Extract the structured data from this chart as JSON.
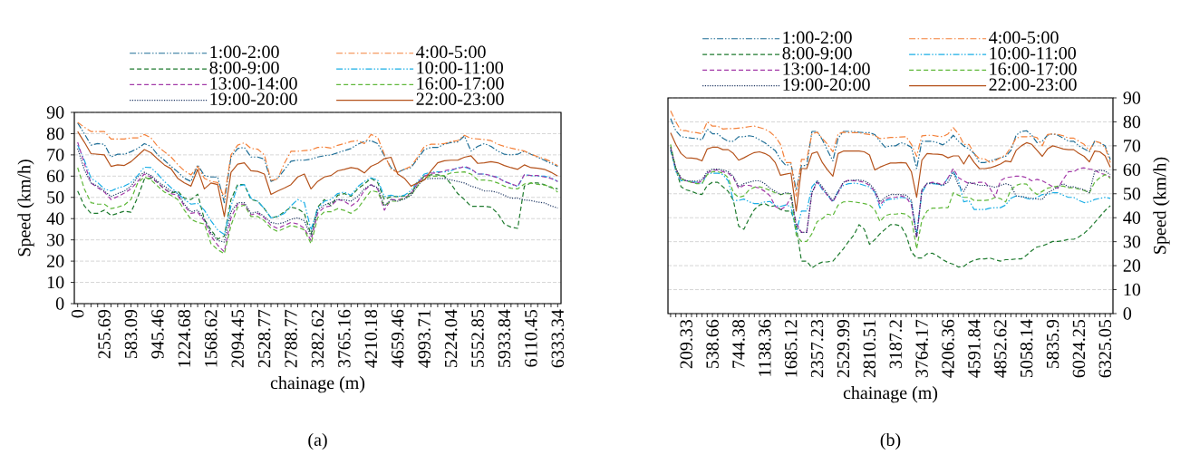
{
  "chart_data": [
    {
      "type": "line",
      "xlabel": "chainage (m)",
      "ylabel": "Speed (km/h)",
      "ylim": [
        0,
        90
      ],
      "yticks": [
        0,
        10,
        20,
        30,
        40,
        50,
        60,
        70,
        80,
        90
      ],
      "grid": "y",
      "legend": "top",
      "annotations": [
        "(a)"
      ],
      "categories": [
        "0",
        null,
        null,
        null,
        "255.69",
        null,
        null,
        null,
        "583.09",
        null,
        null,
        null,
        "945.46",
        null,
        null,
        null,
        "1224.68",
        null,
        null,
        null,
        "1568.62",
        null,
        null,
        null,
        "2094.45",
        null,
        null,
        null,
        "2528.77",
        null,
        null,
        null,
        "2788.77",
        null,
        null,
        null,
        "3282.62",
        null,
        null,
        null,
        "3765.16",
        null,
        null,
        null,
        "4210.18",
        null,
        null,
        null,
        "4659.46",
        null,
        null,
        null,
        "4993.71",
        null,
        null,
        null,
        "5224.04",
        null,
        null,
        null,
        "5552.85",
        null,
        null,
        null,
        "5933.84",
        null,
        null,
        null,
        "6110.45",
        null,
        null,
        null,
        "6333.34"
      ],
      "series": [
        {
          "name": "1:00-2:00",
          "color": "#1f6e96",
          "line_style": "dashdotdot",
          "values": [
            85,
            80,
            74.6,
            75.3,
            75,
            69,
            70.3,
            70.3,
            71.5,
            73,
            75.3,
            74,
            70,
            67.5,
            64.6,
            62,
            59,
            57.5,
            65.3,
            60.3,
            59.6,
            59.6,
            47.5,
            69,
            73,
            73.5,
            69,
            69,
            68,
            57.5,
            59,
            63,
            67,
            67.5,
            67.5,
            68,
            69,
            69.6,
            70,
            71,
            72,
            73,
            75,
            76.3,
            76.7,
            75.3,
            69.6,
            64,
            61.8,
            63.2,
            64,
            68.2,
            72.5,
            73.5,
            73.5,
            75,
            75.8,
            76.1,
            78.9,
            71.8,
            74,
            75.3,
            74,
            71.8,
            70.3,
            70,
            70.3,
            71.8,
            70.3,
            68.9,
            67.5,
            66,
            64.6
          ]
        },
        {
          "name": "4:00-5:00",
          "color": "#f4813a",
          "line_style": "dashdot",
          "values": [
            85.3,
            83,
            81,
            81,
            81,
            77.5,
            77.5,
            77.5,
            78,
            78,
            79.6,
            78,
            74,
            71.5,
            69,
            65.5,
            62.5,
            60.6,
            64.6,
            59,
            57.5,
            57,
            50,
            70,
            74.6,
            75.7,
            73,
            72.7,
            70,
            58,
            58.6,
            66,
            71.7,
            71.7,
            72,
            72.3,
            73.5,
            73.7,
            73.2,
            74.5,
            75.3,
            76.3,
            76.7,
            75.3,
            79.6,
            78.2,
            70.3,
            63.2,
            61.8,
            63.2,
            64.6,
            69,
            74,
            75,
            75,
            75.3,
            76.3,
            76.7,
            79.2,
            77.8,
            77.5,
            77.2,
            76.7,
            75,
            74,
            73.2,
            72.5,
            71.8,
            70.3,
            69.2,
            68.2,
            66.8,
            64.9
          ]
        },
        {
          "name": "8:00-9:00",
          "color": "#1e7a2e",
          "line_style": "dashed",
          "values": [
            53,
            46,
            42.5,
            42.5,
            44,
            41.5,
            42.5,
            43.5,
            43,
            50,
            58.6,
            59,
            57,
            54,
            52,
            53,
            49.6,
            49,
            51.5,
            39.7,
            34.7,
            30.4,
            31.8,
            49,
            56,
            56,
            49,
            48.2,
            44.7,
            40.4,
            41,
            43.2,
            45.4,
            44.7,
            42.5,
            32.5,
            45.4,
            49,
            46,
            51,
            51.8,
            50.5,
            54,
            56.3,
            59,
            57,
            49,
            50.4,
            50.4,
            50.7,
            52,
            56.8,
            60,
            60.6,
            60.6,
            60,
            56.3,
            51.8,
            49,
            45.8,
            45.8,
            45.8,
            45.4,
            42.5,
            37.5,
            36,
            35.4,
            55.3,
            56.8,
            56.8,
            56,
            54.6,
            54
          ]
        },
        {
          "name": "10:00-11:00",
          "color": "#1aaee6",
          "line_style": "dashdotdot",
          "values": [
            74.6,
            67.5,
            59,
            57,
            54,
            53,
            54.4,
            55.3,
            57,
            60.3,
            64.2,
            64,
            61,
            57.5,
            54.6,
            52,
            49,
            46.8,
            47.2,
            44,
            39,
            34.7,
            32.5,
            46,
            55.3,
            56,
            49.6,
            48.2,
            44.7,
            40.4,
            41,
            42.5,
            46,
            49,
            47.5,
            34.7,
            44.7,
            48.2,
            49,
            51.8,
            52.5,
            51,
            55,
            57.5,
            59.2,
            58.2,
            50.4,
            51,
            50.4,
            51,
            53.2,
            57.5,
            61,
            61.8,
            62,
            62,
            62.5,
            64,
            64.3,
            63.2,
            61,
            61,
            60,
            59.6,
            57.5,
            56.3,
            55,
            60.6,
            60.3,
            60,
            60,
            59.2,
            57.5
          ]
        },
        {
          "name": "13:00-14:00",
          "color": "#a33aa8",
          "line_style": "dashed",
          "values": [
            76,
            66,
            56.8,
            54.6,
            52.5,
            49,
            50.4,
            52,
            54,
            57.5,
            61,
            59.6,
            56.8,
            54,
            51.8,
            51,
            46,
            42.5,
            43,
            39,
            31.8,
            27.5,
            24.4,
            40.4,
            46.8,
            46.8,
            41.8,
            42.5,
            40.4,
            36.8,
            35.4,
            36.8,
            38.2,
            37.5,
            35.4,
            29.7,
            42.5,
            45.4,
            46,
            49,
            48.2,
            46,
            48.2,
            53.2,
            56,
            54,
            44,
            49,
            48.8,
            49.7,
            51.8,
            56.8,
            60,
            61.4,
            61.5,
            62.5,
            63.2,
            63.5,
            64.6,
            63.5,
            61,
            61,
            60.3,
            59.2,
            57.5,
            56.4,
            55.3,
            60.6,
            60.3,
            60.3,
            59.6,
            58.9,
            57.5
          ]
        },
        {
          "name": "16:00-17:00",
          "color": "#5fb83a",
          "line_style": "dashed",
          "values": [
            64,
            54,
            47.5,
            46.8,
            46.8,
            44.7,
            45.4,
            46.4,
            49,
            56.8,
            59.6,
            58.2,
            55.3,
            52.5,
            51,
            49,
            44,
            39.7,
            38.2,
            37.5,
            28.2,
            25.4,
            23.5,
            36.8,
            45.4,
            46.4,
            41,
            41,
            39,
            35.4,
            34,
            35.4,
            36.8,
            36,
            34.7,
            28.2,
            40.4,
            43.2,
            43.2,
            44.7,
            43.9,
            42.5,
            44.7,
            49,
            53.2,
            52.5,
            46,
            48.2,
            48.2,
            49.7,
            51,
            55.3,
            59.2,
            60,
            60,
            60.3,
            61.5,
            61.8,
            62,
            61,
            58.2,
            58.2,
            57.8,
            56.8,
            55.3,
            54.3,
            54,
            56.3,
            56.8,
            56.1,
            55.8,
            55,
            52.5
          ]
        },
        {
          "name": "19:00-20:00",
          "color": "#203864",
          "line_style": "dotted",
          "values": [
            73,
            63,
            56.8,
            55.3,
            53,
            50.4,
            51.8,
            53,
            55.3,
            59.6,
            61.8,
            60.3,
            57.5,
            55.3,
            53,
            51.8,
            46.8,
            43.2,
            44,
            39.7,
            33.2,
            29.7,
            29,
            43.2,
            47.5,
            47.5,
            42.5,
            43.2,
            41,
            38.2,
            37.5,
            38.2,
            39.7,
            40.4,
            39,
            31.8,
            44,
            46.4,
            47.5,
            49,
            48.8,
            48.2,
            50.4,
            54,
            56,
            54.6,
            46,
            49,
            48.2,
            49.2,
            51,
            55.7,
            58.6,
            58.9,
            58.9,
            58.9,
            58.2,
            57.5,
            56.8,
            55.3,
            54.4,
            53,
            53,
            52.3,
            51,
            49.6,
            49.6,
            48.8,
            48.5,
            47.8,
            47.4,
            46,
            45
          ]
        },
        {
          "name": "22:00-23:00",
          "color": "#b5531c",
          "line_style": "solid",
          "values": [
            81,
            76,
            70.6,
            70.3,
            70,
            64.6,
            65.3,
            65,
            66.8,
            69.6,
            72.5,
            71,
            68,
            65.3,
            63.5,
            59,
            56.8,
            55.3,
            63.2,
            54,
            56.8,
            56,
            41,
            61.8,
            65.6,
            66.3,
            62.5,
            62.2,
            61,
            51.4,
            53,
            54.4,
            56,
            59.6,
            61,
            54,
            57.5,
            59.6,
            60.3,
            62.5,
            63.2,
            64,
            63.5,
            61.5,
            64.6,
            66,
            68.2,
            68.9,
            61,
            59,
            55.3,
            56.8,
            58.2,
            62.5,
            66.3,
            67.2,
            67.5,
            67.5,
            68.9,
            69.6,
            66,
            66.3,
            66.8,
            66.3,
            65,
            64,
            63.2,
            65.3,
            64,
            63.7,
            63.2,
            61.8,
            60
          ]
        }
      ]
    },
    {
      "type": "line",
      "xlabel": "chainage (m)",
      "ylabel": "Speed (km/h)",
      "ylim": [
        0,
        90
      ],
      "yticks": [
        0,
        10,
        20,
        30,
        40,
        50,
        60,
        70,
        80,
        90
      ],
      "grid": "y",
      "legend": "top",
      "annotations": [
        "(b)"
      ],
      "categories": [
        null,
        null,
        null,
        "209.33",
        null,
        null,
        null,
        null,
        "538.66",
        null,
        null,
        null,
        null,
        "744.38",
        null,
        null,
        null,
        null,
        "1138.36",
        null,
        null,
        null,
        null,
        "1685.12",
        null,
        null,
        null,
        null,
        "2357.23",
        null,
        null,
        null,
        null,
        "2529.99",
        null,
        null,
        null,
        null,
        "2810.51",
        null,
        null,
        null,
        null,
        "3187.2",
        null,
        null,
        null,
        null,
        "3764.17",
        null,
        null,
        null,
        null,
        "4206.36",
        null,
        null,
        null,
        null,
        "4591.84",
        null,
        null,
        null,
        null,
        "4852.62",
        null,
        null,
        null,
        null,
        "5058.14",
        null,
        null,
        null,
        null,
        "5835.9",
        null,
        null,
        null,
        null,
        "6024.25",
        null,
        null,
        null,
        null,
        "6325.05",
        null
      ],
      "series": [
        {
          "name": "1:00-2:00",
          "color": "#1f6e96",
          "line_style": "dashdotdot",
          "values": [
            81.4,
            76.3,
            73.8,
            73.5,
            73.2,
            73,
            72.5,
            77,
            75,
            75,
            73.2,
            71.9,
            71.9,
            73.8,
            73.8,
            74.2,
            73.8,
            72.5,
            71.3,
            69.6,
            68,
            64.3,
            61.8,
            62.4,
            51.6,
            61.8,
            61.8,
            76,
            76,
            72.5,
            68,
            63.7,
            73.2,
            76,
            76,
            76,
            75.7,
            75.5,
            75.5,
            74.7,
            71.9,
            69.4,
            70,
            70,
            71.3,
            70.6,
            69.4,
            60.5,
            71.9,
            71.9,
            71.9,
            71.3,
            70.4,
            71.9,
            74.4,
            71.9,
            70,
            68.7,
            66.8,
            63,
            63,
            63.7,
            64.3,
            65,
            65.6,
            68,
            74.4,
            76,
            76.3,
            74.4,
            71.3,
            71.9,
            74.4,
            75,
            74.4,
            73.2,
            71.9,
            71.9,
            70,
            68.7,
            67.5,
            71.9,
            71.3,
            70,
            64.3
          ]
        },
        {
          "name": "4:00-5:00",
          "color": "#f4813a",
          "line_style": "dashdot",
          "values": [
            84.6,
            80,
            76.3,
            76.3,
            75.7,
            75.5,
            75,
            80,
            78.2,
            78.2,
            77,
            77.2,
            77.2,
            77.4,
            77.6,
            78,
            78.2,
            77.6,
            77,
            75.7,
            73.8,
            70.6,
            63,
            63,
            49,
            64.3,
            64.3,
            75,
            75.7,
            73,
            70.6,
            67.5,
            75,
            75.7,
            75.5,
            75.5,
            75.5,
            75,
            74.7,
            74.4,
            73,
            73.2,
            73.5,
            73.5,
            73.7,
            73.8,
            70.6,
            65.6,
            74.2,
            74.4,
            74.4,
            74,
            73.8,
            75,
            77.6,
            75,
            70.6,
            70.6,
            66.8,
            64.6,
            64.6,
            63,
            63.7,
            65,
            66.2,
            69.4,
            73.2,
            73.8,
            73.8,
            74,
            73.4,
            70,
            74.7,
            75,
            74.7,
            74.2,
            73.2,
            73.2,
            71.9,
            70.6,
            68,
            72,
            71.3,
            69.4,
            63
          ]
        },
        {
          "name": "8:00-9:00",
          "color": "#1e7a2e",
          "line_style": "dashed",
          "values": [
            68.1,
            60.5,
            52.9,
            51.6,
            51,
            50.1,
            49.7,
            53.5,
            54.8,
            54.8,
            52.9,
            51,
            47.2,
            36.5,
            35.2,
            39.6,
            43.4,
            45.3,
            45.9,
            44.7,
            45,
            43.4,
            42.8,
            42.8,
            36.5,
            21.9,
            21.9,
            19,
            20.6,
            21.5,
            21.6,
            21.9,
            24.4,
            27,
            30.1,
            32.7,
            37.1,
            35.2,
            28.9,
            30.8,
            33.3,
            35.2,
            37.1,
            37.1,
            36.5,
            32.7,
            25.7,
            23.2,
            23.2,
            25,
            25.2,
            24,
            22.5,
            21.3,
            20.6,
            19.4,
            19.7,
            21.3,
            22.3,
            22.8,
            22.8,
            23.2,
            22.5,
            21.9,
            22.5,
            22.5,
            22.8,
            22.8,
            24.4,
            26.3,
            27.8,
            28.2,
            29.1,
            30.1,
            30.1,
            30.4,
            31,
            31,
            32,
            33.5,
            35.5,
            38,
            40.5,
            43,
            45
          ]
        },
        {
          "name": "10:00-11:00",
          "color": "#1aaee6",
          "line_style": "dashdotdot",
          "values": [
            68.7,
            59.2,
            55.4,
            55.4,
            55,
            54.8,
            54.2,
            58.6,
            58.6,
            58.6,
            58,
            55.4,
            47.2,
            47.2,
            47.8,
            46.6,
            45.9,
            45.9,
            46.6,
            46.8,
            45,
            44.7,
            45.3,
            44.7,
            33.9,
            42.8,
            42.8,
            52.9,
            55.4,
            51.6,
            49.4,
            46.6,
            51,
            53.5,
            54.2,
            54.4,
            54.2,
            53.5,
            52.9,
            50.6,
            44,
            47.2,
            47.8,
            47.8,
            48.5,
            48.2,
            46.6,
            33.3,
            50.4,
            54.2,
            54.2,
            54,
            53.2,
            56.7,
            59.2,
            55.4,
            46.6,
            47.2,
            43.4,
            43.4,
            43.4,
            44,
            44.2,
            44.2,
            45.3,
            48.1,
            49.1,
            48.8,
            48.1,
            47.6,
            48.5,
            49.7,
            49.7,
            50.4,
            50.4,
            49.4,
            48.5,
            48.5,
            47.2,
            46.3,
            46.6,
            47.6,
            48.1,
            48.5,
            48.1
          ]
        },
        {
          "name": "13:00-14:00",
          "color": "#a33aa8",
          "line_style": "dashed",
          "values": [
            69.4,
            60.5,
            56.1,
            55.4,
            54.8,
            54.4,
            55.4,
            58.6,
            59.9,
            59.9,
            59.2,
            58.6,
            56.7,
            52.3,
            53.5,
            53.5,
            52.9,
            52.3,
            51,
            49.1,
            44.7,
            43.4,
            44.7,
            48.5,
            37.7,
            33.9,
            33.9,
            50.4,
            54.8,
            52.3,
            49.1,
            46.6,
            50.4,
            54.8,
            55.7,
            55.4,
            55.2,
            54.8,
            53.5,
            51,
            45.3,
            47.8,
            48.5,
            48.5,
            49.1,
            48.5,
            45.3,
            31.4,
            51.6,
            54.2,
            54.8,
            54.4,
            53.5,
            56.7,
            60.5,
            56.7,
            55.4,
            54.2,
            54.4,
            54.8,
            54.8,
            52.3,
            48.5,
            55.4,
            56.7,
            57,
            57.3,
            57.3,
            56.7,
            55.4,
            56,
            55.4,
            54.2,
            52.9,
            52.3,
            56,
            59.2,
            59.2,
            60.5,
            60.8,
            60.3,
            59.9,
            58.6,
            58,
            57
          ]
        },
        {
          "name": "16:00-17:00",
          "color": "#5fb83a",
          "line_style": "dashed",
          "values": [
            70.6,
            60.5,
            56.1,
            55.4,
            54.8,
            54.2,
            54.2,
            58,
            59.2,
            59.2,
            58.6,
            56.7,
            50.4,
            48.5,
            49.1,
            51.6,
            52.7,
            52.9,
            52.3,
            51.4,
            50.4,
            49.7,
            50,
            50,
            32.7,
            30.1,
            30.1,
            33.3,
            38.4,
            39.6,
            41.5,
            40.9,
            45.3,
            46.6,
            46.8,
            46.6,
            46.3,
            45.9,
            45.3,
            43.4,
            38.4,
            40.9,
            41.5,
            41.5,
            41.8,
            41.5,
            39.6,
            27,
            39,
            42.8,
            44,
            44,
            44.2,
            44.2,
            50.4,
            49.4,
            48.5,
            48.5,
            47.2,
            47.2,
            47.2,
            47.5,
            48.5,
            48,
            46.6,
            51.6,
            53.5,
            54.2,
            54,
            51.4,
            49.7,
            51,
            52.3,
            52.8,
            53.2,
            53.2,
            52.5,
            52.5,
            51.9,
            51.4,
            50.4,
            54.8,
            56.7,
            58,
            56.5
          ]
        },
        {
          "name": "19:00-20:00",
          "color": "#203864",
          "line_style": "dotted",
          "values": [
            69.4,
            60.5,
            56.7,
            55.4,
            55.4,
            55.2,
            55.9,
            59.2,
            60.3,
            60.3,
            59.9,
            59.2,
            57.3,
            52.9,
            54.2,
            54.8,
            55.4,
            55.4,
            54.2,
            52.3,
            51,
            49.7,
            50.4,
            50.1,
            36.5,
            33.9,
            33.9,
            50.4,
            55.4,
            52.9,
            49.7,
            47.2,
            51,
            54.8,
            55.4,
            55.7,
            55.7,
            55.4,
            54.2,
            51.6,
            46.6,
            48.5,
            49.7,
            49.7,
            49.7,
            49.4,
            47.2,
            32,
            51.6,
            54.4,
            54.4,
            54.2,
            53.5,
            54.8,
            59.2,
            53.5,
            51,
            54.8,
            54.2,
            53.5,
            53.5,
            53.2,
            52.7,
            53.5,
            54.2,
            53.5,
            49.1,
            48.8,
            48.5,
            48.1,
            47.8,
            47.6,
            50.4,
            51.6,
            52.9,
            54.2,
            52.9,
            52.9,
            52.3,
            51.6,
            50.4,
            59.2,
            59.9,
            59.5,
            58
          ]
        },
        {
          "name": "22:00-23:00",
          "color": "#b5531c",
          "line_style": "solid",
          "values": [
            75.4,
            70.6,
            66.8,
            65,
            64.9,
            64.6,
            63.7,
            68.7,
            69.4,
            69.4,
            68.4,
            68.4,
            66.8,
            64,
            65,
            66.2,
            67.2,
            67.5,
            66.8,
            65.6,
            63,
            57.7,
            58.2,
            58.6,
            42.8,
            60.5,
            60.5,
            66.8,
            67.5,
            63,
            59.9,
            57.3,
            66.8,
            67.8,
            67.8,
            67.8,
            67.8,
            67.5,
            66.2,
            59.9,
            61.1,
            62,
            62.8,
            62.8,
            63,
            62.8,
            59.2,
            48.5,
            64,
            66.8,
            66.6,
            66.5,
            66.2,
            65,
            65.8,
            65.8,
            62.4,
            66.2,
            63,
            60.5,
            60.5,
            60.8,
            61.5,
            62.4,
            63.7,
            63.3,
            68.1,
            70,
            71.3,
            70.6,
            68.1,
            65.6,
            68.7,
            70,
            69.4,
            68.7,
            68.4,
            68.4,
            66.8,
            65.6,
            63.3,
            67.8,
            67.5,
            65.8,
            61.1
          ]
        }
      ]
    }
  ]
}
